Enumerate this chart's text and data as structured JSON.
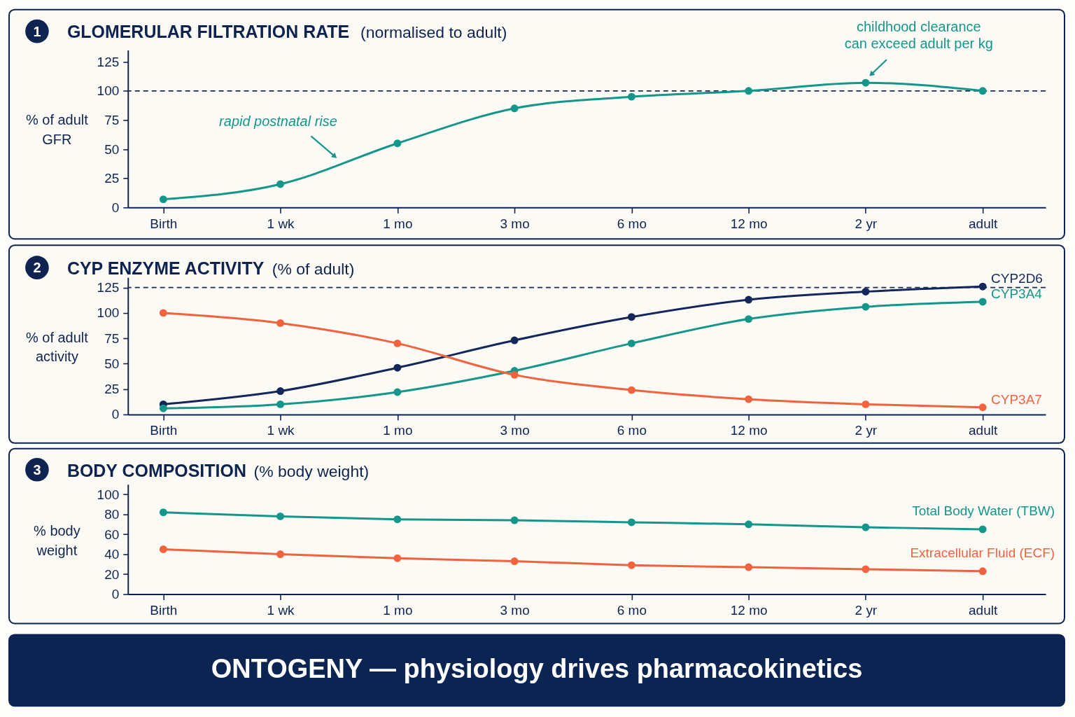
{
  "chart_data": [
    {
      "type": "line",
      "title": "GLOMERULAR FILTRATION RATE",
      "subtitle": "(normalised to adult)",
      "ylabel": "% of adult GFR",
      "categories": [
        "Birth",
        "1 wk",
        "1 mo",
        "3 mo",
        "6 mo",
        "12 mo",
        "2 yr",
        "adult"
      ],
      "series": [
        {
          "color": "#15968b",
          "values": [
            7,
            20,
            55,
            85,
            95,
            100,
            107,
            100
          ]
        }
      ],
      "ylim": [
        0,
        135
      ],
      "yticks": [
        0,
        25,
        50,
        75,
        100,
        125
      ],
      "marker": "circle",
      "line_style": "solid",
      "ref_lines": [
        {
          "axis": "y",
          "value": 100,
          "color": "#1a2a50",
          "line_style": "dashed"
        }
      ],
      "annotations": [
        "1",
        "rapid postnatal rise",
        {
          "text": "childhood clearance\ncan exceed adult per kg",
          "x": "2 yr",
          "y": 107
        }
      ]
    },
    {
      "type": "line",
      "title": "CYP ENZYME ACTIVITY",
      "subtitle": "(% of adult)",
      "ylabel": "% of adult activity",
      "categories": [
        "Birth",
        "1 wk",
        "1 mo",
        "3 mo",
        "6 mo",
        "12 mo",
        "2 yr",
        "adult"
      ],
      "series": [
        {
          "name": "CYP2D6",
          "color": "#13275a",
          "values": [
            10,
            23,
            46,
            73,
            96,
            113,
            121,
            126
          ]
        },
        {
          "name": "CYP3A4",
          "color": "#15968b",
          "values": [
            6,
            10,
            22,
            43,
            70,
            94,
            106,
            111
          ]
        },
        {
          "name": "CYP3A7",
          "color": "#f1623f",
          "values": [
            100,
            90,
            70,
            39,
            24,
            15,
            10,
            7
          ]
        }
      ],
      "ylim": [
        0,
        135
      ],
      "yticks": [
        0,
        25,
        50,
        75,
        100,
        125
      ],
      "marker": "circle",
      "line_style": "solid",
      "ref_lines": [
        {
          "axis": "y",
          "value": 125,
          "color": "#1a2a50",
          "line_style": "dashed"
        }
      ],
      "annotations": [
        "2"
      ]
    },
    {
      "type": "line",
      "title": "BODY COMPOSITION",
      "subtitle": "(% body weight)",
      "ylabel": "% body weight",
      "categories": [
        "Birth",
        "1 wk",
        "1 mo",
        "3 mo",
        "6 mo",
        "12 mo",
        "2 yr",
        "adult"
      ],
      "series": [
        {
          "name": "Total Body Water (TBW)",
          "color": "#15968b",
          "values": [
            82,
            78,
            75,
            74,
            72,
            70,
            67,
            65
          ]
        },
        {
          "name": "Extracellular Fluid (ECF)",
          "color": "#f1623f",
          "values": [
            45,
            40,
            36,
            33,
            29,
            27,
            25,
            23
          ]
        }
      ],
      "ylim": [
        0,
        110
      ],
      "yticks": [
        0,
        20,
        40,
        60,
        80,
        100
      ],
      "marker": "circle",
      "line_style": "solid",
      "annotations": [
        "3"
      ]
    },
    {
      "type": "other",
      "title": "ONTOGENY — physiology drives pharmacokinetics"
    }
  ]
}
